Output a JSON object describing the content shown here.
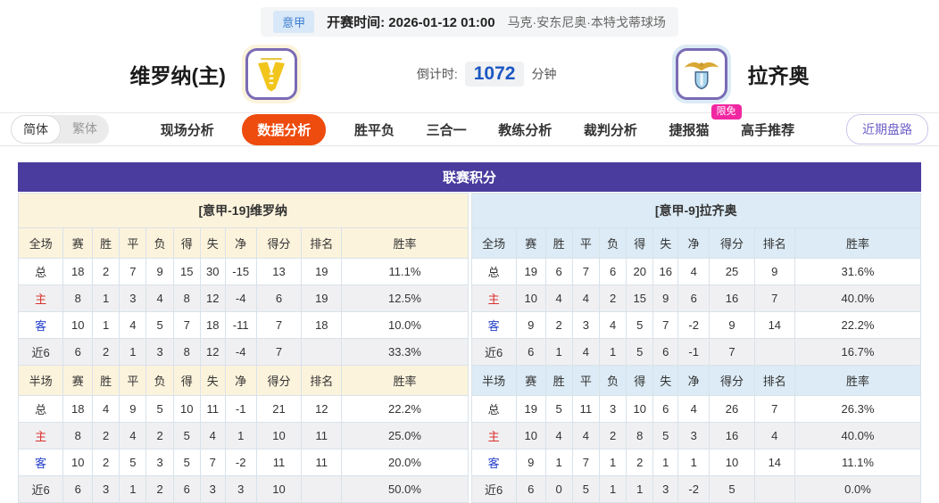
{
  "colors": {
    "title_purple": "#4a3c9e",
    "home_panel_cream": "#fcf3dc",
    "away_panel_blue": "#dcebf5",
    "active_tab_orange": "#ee4b0e",
    "badge_pink": "#f127a2",
    "countdown_blue": "#1b57c2",
    "home_label_red": "#d9302c",
    "away_label_blue": "#2541cc",
    "league_badge_blue": "#3d7fd0",
    "recent_button_purple": "#6f61c8"
  },
  "topbar": {
    "league_badge": "意甲",
    "kickoff": "开赛时间: 2026-01-12 01:00",
    "venue": "马克·安东尼奥·本特戈蒂球场"
  },
  "header": {
    "home_team": "维罗纳(主)",
    "away_team": "拉齐奥",
    "countdown_label": "倒计时:",
    "countdown_value": "1072",
    "countdown_unit": "分钟"
  },
  "nav": {
    "lang_simplified": "简体",
    "lang_traditional": "繁体",
    "tabs": [
      {
        "label": "现场分析",
        "active": false
      },
      {
        "label": "数据分析",
        "active": true
      },
      {
        "label": "胜平负",
        "active": false
      },
      {
        "label": "三合一",
        "active": false
      },
      {
        "label": "教练分析",
        "active": false
      },
      {
        "label": "裁判分析",
        "active": false
      },
      {
        "label": "捷报猫",
        "active": false,
        "badge": "限免"
      },
      {
        "label": "高手推荐",
        "active": false
      }
    ],
    "recent_button": "近期盘路"
  },
  "standings": {
    "title": "联赛积分",
    "columns_full": [
      "全场",
      "赛",
      "胜",
      "平",
      "负",
      "得",
      "失",
      "净",
      "得分",
      "排名",
      "胜率"
    ],
    "columns_half": [
      "半场",
      "赛",
      "胜",
      "平",
      "负",
      "得",
      "失",
      "净",
      "得分",
      "排名",
      "胜率"
    ],
    "panels": [
      {
        "id": "home",
        "team_header": "[意甲-19]维罗纳",
        "theme": "cream",
        "sections": [
          {
            "key": "full",
            "rows": [
              {
                "label": "总",
                "values": [
                  "18",
                  "2",
                  "7",
                  "9",
                  "15",
                  "30",
                  "-15",
                  "13",
                  "19",
                  "11.1%"
                ]
              },
              {
                "label": "主",
                "values": [
                  "8",
                  "1",
                  "3",
                  "4",
                  "8",
                  "12",
                  "-4",
                  "6",
                  "19",
                  "12.5%"
                ]
              },
              {
                "label": "客",
                "values": [
                  "10",
                  "1",
                  "4",
                  "5",
                  "7",
                  "18",
                  "-11",
                  "7",
                  "18",
                  "10.0%"
                ]
              },
              {
                "label": "近6",
                "values": [
                  "6",
                  "2",
                  "1",
                  "3",
                  "8",
                  "12",
                  "-4",
                  "7",
                  "",
                  "33.3%"
                ]
              }
            ]
          },
          {
            "key": "half",
            "rows": [
              {
                "label": "总",
                "values": [
                  "18",
                  "4",
                  "9",
                  "5",
                  "10",
                  "11",
                  "-1",
                  "21",
                  "12",
                  "22.2%"
                ]
              },
              {
                "label": "主",
                "values": [
                  "8",
                  "2",
                  "4",
                  "2",
                  "5",
                  "4",
                  "1",
                  "10",
                  "11",
                  "25.0%"
                ]
              },
              {
                "label": "客",
                "values": [
                  "10",
                  "2",
                  "5",
                  "3",
                  "5",
                  "7",
                  "-2",
                  "11",
                  "11",
                  "20.0%"
                ]
              },
              {
                "label": "近6",
                "values": [
                  "6",
                  "3",
                  "1",
                  "2",
                  "6",
                  "3",
                  "3",
                  "10",
                  "",
                  "50.0%"
                ]
              }
            ]
          }
        ]
      },
      {
        "id": "away",
        "team_header": "[意甲-9]拉齐奥",
        "theme": "blue",
        "sections": [
          {
            "key": "full",
            "rows": [
              {
                "label": "总",
                "values": [
                  "19",
                  "6",
                  "7",
                  "6",
                  "20",
                  "16",
                  "4",
                  "25",
                  "9",
                  "31.6%"
                ]
              },
              {
                "label": "主",
                "values": [
                  "10",
                  "4",
                  "4",
                  "2",
                  "15",
                  "9",
                  "6",
                  "16",
                  "7",
                  "40.0%"
                ]
              },
              {
                "label": "客",
                "values": [
                  "9",
                  "2",
                  "3",
                  "4",
                  "5",
                  "7",
                  "-2",
                  "9",
                  "14",
                  "22.2%"
                ]
              },
              {
                "label": "近6",
                "values": [
                  "6",
                  "1",
                  "4",
                  "1",
                  "5",
                  "6",
                  "-1",
                  "7",
                  "",
                  "16.7%"
                ]
              }
            ]
          },
          {
            "key": "half",
            "rows": [
              {
                "label": "总",
                "values": [
                  "19",
                  "5",
                  "11",
                  "3",
                  "10",
                  "6",
                  "4",
                  "26",
                  "7",
                  "26.3%"
                ]
              },
              {
                "label": "主",
                "values": [
                  "10",
                  "4",
                  "4",
                  "2",
                  "8",
                  "5",
                  "3",
                  "16",
                  "4",
                  "40.0%"
                ]
              },
              {
                "label": "客",
                "values": [
                  "9",
                  "1",
                  "7",
                  "1",
                  "2",
                  "1",
                  "1",
                  "10",
                  "14",
                  "11.1%"
                ]
              },
              {
                "label": "近6",
                "values": [
                  "6",
                  "0",
                  "5",
                  "1",
                  "1",
                  "3",
                  "-2",
                  "5",
                  "",
                  "0.0%"
                ]
              }
            ]
          }
        ]
      }
    ]
  }
}
